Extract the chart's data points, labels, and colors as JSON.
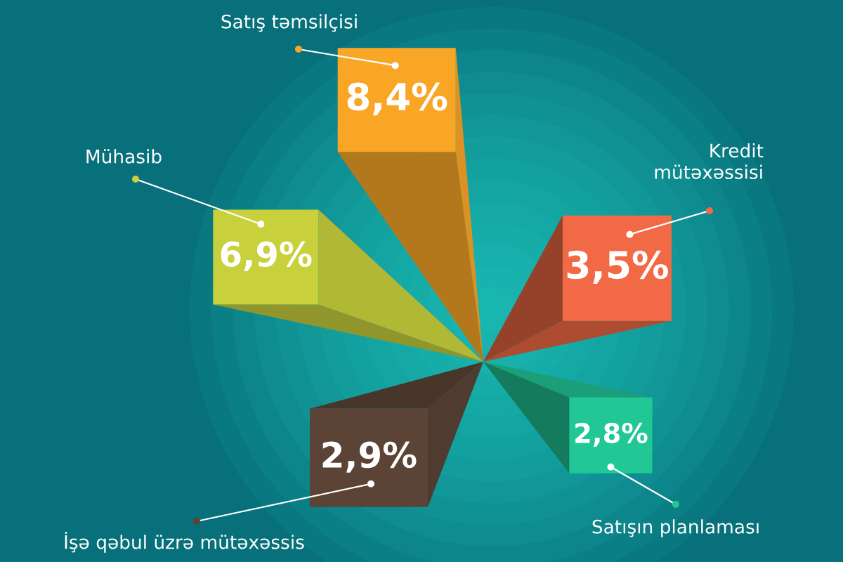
{
  "chart_data": {
    "type": "other",
    "categories": [
      "Satış təmsilçisi",
      "Kredit mütəxəssisi",
      "Satışın planlaması",
      "İşə qəbul üzrə mütəxəssis",
      "Mühasib"
    ],
    "values": [
      8.4,
      3.5,
      2.8,
      2.9,
      6.9
    ],
    "value_labels": [
      "8,4%",
      "3,5%",
      "2,8%",
      "2,9%",
      "6,9%"
    ],
    "colors": [
      "#f9a627",
      "#f26a45",
      "#22c796",
      "#5b4336",
      "#c8d13c"
    ]
  }
}
